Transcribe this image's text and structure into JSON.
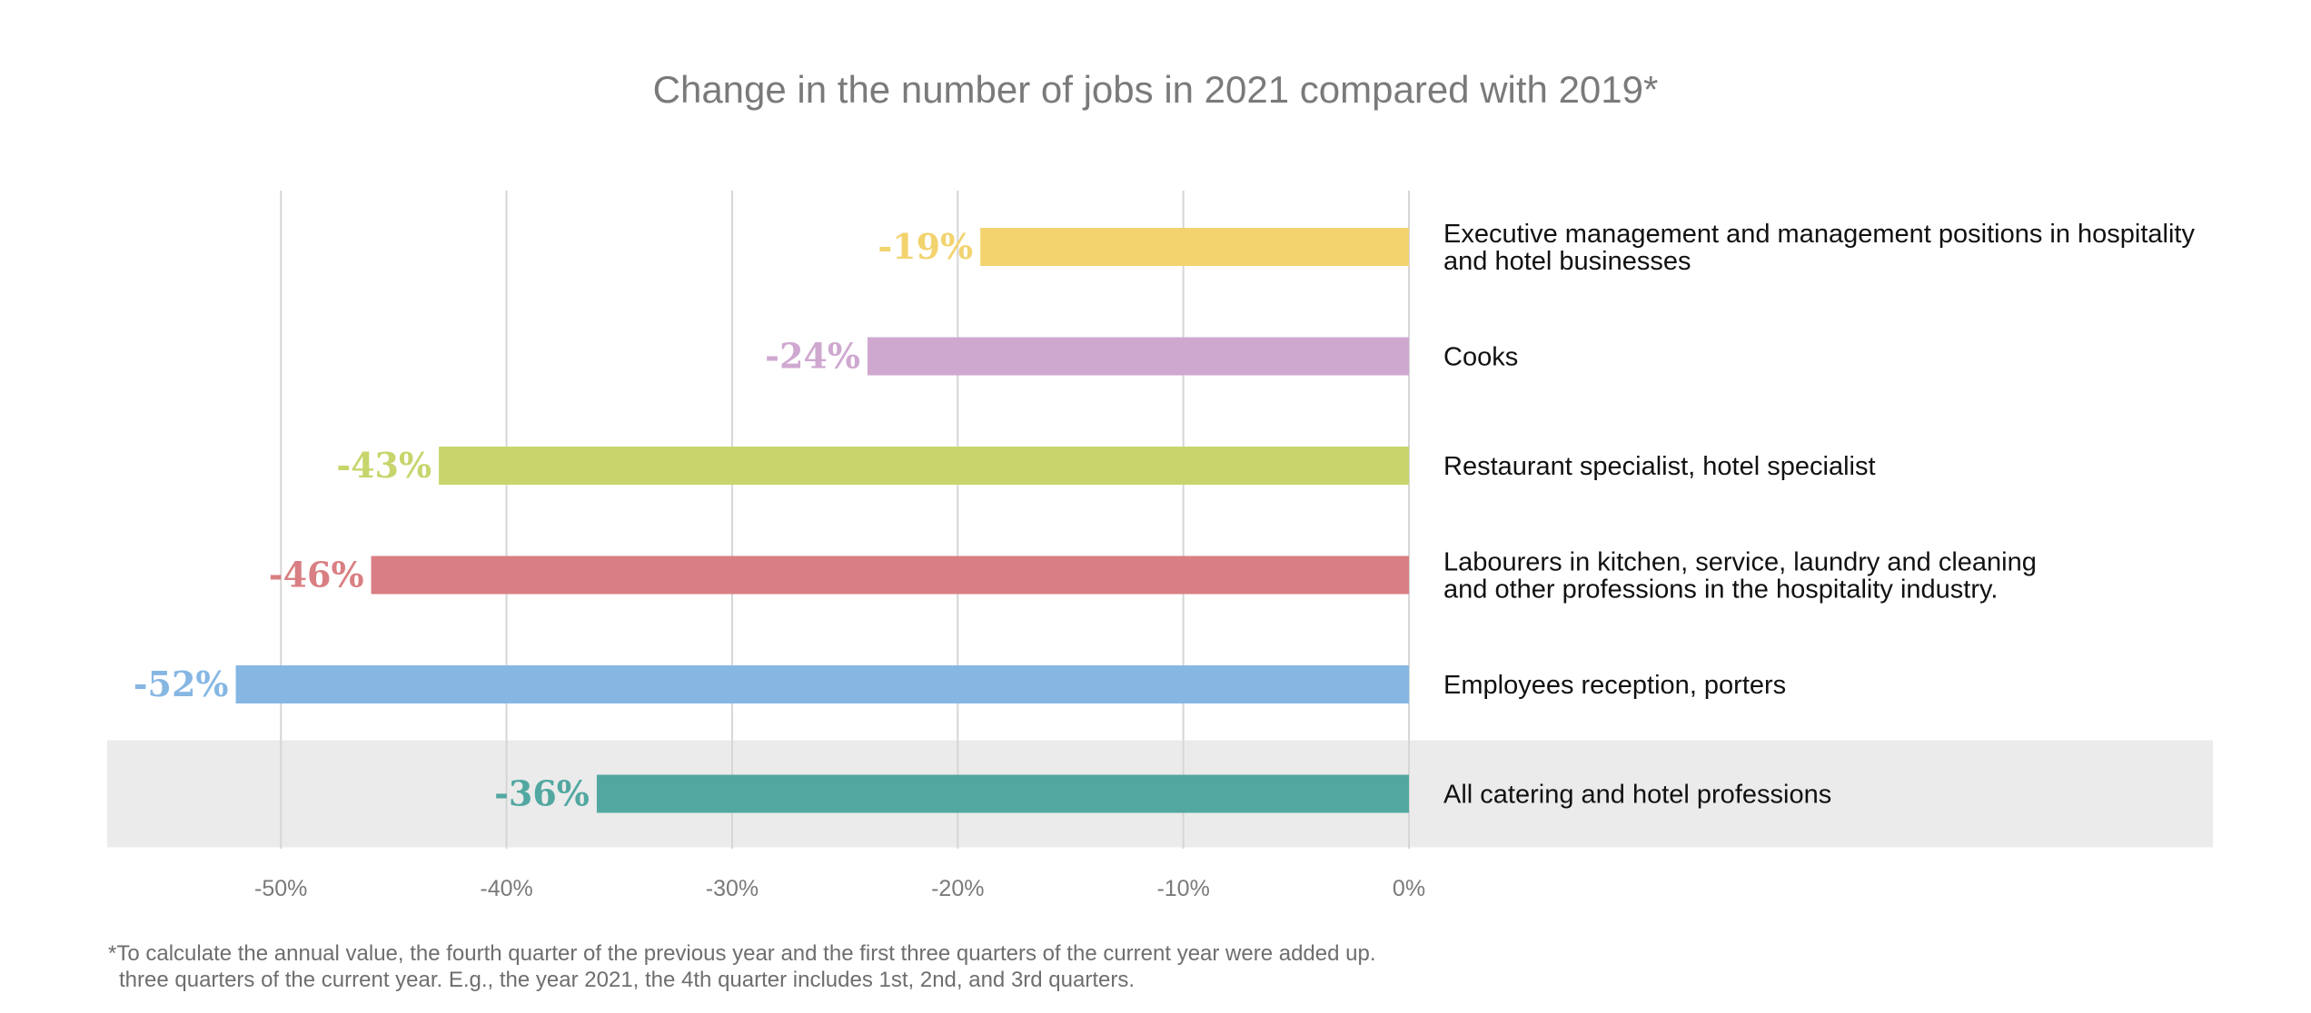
{
  "chart_data": {
    "type": "bar",
    "orientation": "horizontal",
    "title": "Change in the number of jobs in 2021 compared with 2019*",
    "xlim": [
      -57.7,
      0
    ],
    "xticks": [
      -50,
      -40,
      -30,
      -20,
      -10,
      0
    ],
    "xtick_labels": [
      "-50%",
      "-40%",
      "-30%",
      "-20%",
      "-10%",
      "0%"
    ],
    "categories": [
      [
        "Executive management and management positions in hospitality",
        "and hotel businesses"
      ],
      [
        "Cooks"
      ],
      [
        "Restaurant specialist, hotel specialist"
      ],
      [
        "Labourers in kitchen, service, laundry and cleaning",
        "and other professions in the hospitality industry."
      ],
      [
        "Employees reception, porters"
      ],
      [
        "All catering and hotel professions"
      ]
    ],
    "values": [
      -19,
      -24,
      -43,
      -46,
      -52,
      -36
    ],
    "value_labels": [
      "-19%",
      "-24%",
      "-43%",
      "-46%",
      "-52%",
      "-36%"
    ],
    "colors": [
      "#f2d36e",
      "#cfa8d0",
      "#c8d56c",
      "#d97f83",
      "#86b7e3",
      "#52a8a1"
    ],
    "highlight_category": 5,
    "highlight_color": "#ebebeb",
    "grid_color": "#d6d6d6",
    "footnote": [
      "*To calculate the annual value, the fourth quarter of the previous year and the first three quarters of the current year were added up.",
      "three quarters of the current year. E.g., the year 2021, the 4th quarter includes 1st, 2nd, and 3rd quarters."
    ]
  }
}
